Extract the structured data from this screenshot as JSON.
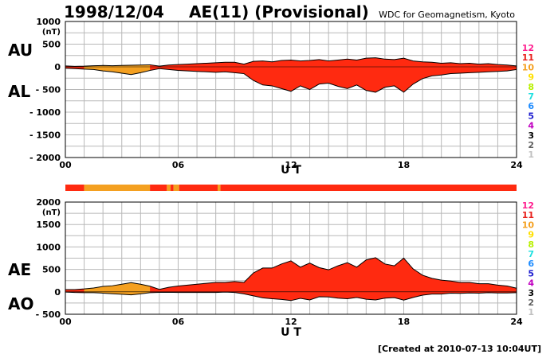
{
  "header": {
    "date": "1998/12/04",
    "title": "AE(11) (Provisional)",
    "source": "WDC for Geomagnetism, Kyoto"
  },
  "footer": {
    "created": "[Created at 2010-07-13 10:04UT]"
  },
  "colors": {
    "fill_main": "#ff2a10",
    "fill_low": "#f4a020",
    "outline": "#000000",
    "grid": "#b8b8b8"
  },
  "station_levels": [
    {
      "label": "12",
      "color": "#ff1f8f"
    },
    {
      "label": "11",
      "color": "#e8201c"
    },
    {
      "label": "10",
      "color": "#f4a020"
    },
    {
      "label": "9",
      "color": "#ffe000"
    },
    {
      "label": "8",
      "color": "#b8f000"
    },
    {
      "label": "7",
      "color": "#20e0e0"
    },
    {
      "label": "6",
      "color": "#1e8cff"
    },
    {
      "label": "5",
      "color": "#2020d0"
    },
    {
      "label": "4",
      "color": "#c000c0"
    },
    {
      "label": "3",
      "color": "#000000"
    },
    {
      "label": "2",
      "color": "#606060"
    },
    {
      "label": "1",
      "color": "#c0c0c0"
    }
  ],
  "chart_data": [
    {
      "type": "area",
      "panel": "AU/AL",
      "side_labels": {
        "upper": "AU",
        "lower": "AL"
      },
      "xlabel": "U T",
      "ylabel": "(nT)",
      "xlim": [
        0,
        24
      ],
      "ylim": [
        -2000,
        1000
      ],
      "xticks": [
        0,
        6,
        12,
        18,
        24
      ],
      "xtick_labels": [
        "00",
        "06",
        "12",
        "18",
        "24"
      ],
      "yticks": [
        1000,
        500,
        0,
        -500,
        -1000,
        -1500,
        -2000
      ],
      "ytick_labels": [
        "1000",
        "500",
        "0",
        "- 500",
        "- 1000",
        "- 1500",
        "- 2000"
      ],
      "grid": true,
      "series": [
        {
          "key": "AU",
          "x": [
            0,
            0.5,
            1,
            1.5,
            2,
            2.5,
            3,
            3.5,
            4,
            4.5,
            5,
            5.5,
            6,
            6.5,
            7,
            7.5,
            8,
            8.5,
            9,
            9.5,
            10,
            10.5,
            11,
            11.5,
            12,
            12.5,
            13,
            13.5,
            14,
            14.5,
            15,
            15.5,
            16,
            16.5,
            17,
            17.5,
            18,
            18.5,
            19,
            19.5,
            20,
            20.5,
            21,
            21.5,
            22,
            22.5,
            23,
            23.5,
            24
          ],
          "values": [
            20,
            10,
            15,
            25,
            30,
            25,
            30,
            35,
            40,
            45,
            15,
            40,
            50,
            60,
            70,
            80,
            90,
            100,
            100,
            60,
            120,
            130,
            110,
            140,
            150,
            130,
            140,
            160,
            130,
            150,
            170,
            150,
            190,
            200,
            170,
            160,
            190,
            130,
            110,
            100,
            80,
            90,
            70,
            80,
            60,
            70,
            50,
            40,
            20
          ]
        },
        {
          "key": "AL",
          "x": [
            0,
            0.5,
            1,
            1.5,
            2,
            2.5,
            3,
            3.5,
            4,
            4.5,
            5,
            5.5,
            6,
            6.5,
            7,
            7.5,
            8,
            8.5,
            9,
            9.5,
            10,
            10.5,
            11,
            11.5,
            12,
            12.5,
            13,
            13.5,
            14,
            14.5,
            15,
            15.5,
            16,
            16.5,
            17,
            17.5,
            18,
            18.5,
            19,
            19.5,
            20,
            20.5,
            21,
            21.5,
            22,
            22.5,
            23,
            23.5,
            24
          ],
          "values": [
            -30,
            -40,
            -50,
            -60,
            -90,
            -110,
            -140,
            -170,
            -130,
            -80,
            -40,
            -60,
            -80,
            -90,
            -100,
            -110,
            -120,
            -110,
            -130,
            -150,
            -300,
            -400,
            -420,
            -480,
            -540,
            -420,
            -500,
            -380,
            -360,
            -430,
            -480,
            -400,
            -520,
            -560,
            -450,
            -420,
            -560,
            -380,
            -260,
            -200,
            -180,
            -150,
            -140,
            -130,
            -120,
            -110,
            -100,
            -90,
            -60
          ]
        }
      ]
    },
    {
      "type": "area",
      "panel": "AE/AO",
      "side_labels": {
        "upper": "AE",
        "lower": "AO"
      },
      "xlabel": "U T",
      "ylabel": "(nT)",
      "xlim": [
        0,
        24
      ],
      "ylim": [
        -500,
        2000
      ],
      "xticks": [
        0,
        6,
        12,
        18,
        24
      ],
      "xtick_labels": [
        "00",
        "06",
        "12",
        "18",
        "24"
      ],
      "yticks": [
        2000,
        1500,
        1000,
        500,
        0,
        -500
      ],
      "ytick_labels": [
        "2000",
        "1500",
        "1000",
        "500",
        "0",
        "- 500"
      ],
      "grid": true,
      "series": [
        {
          "key": "AE",
          "x": [
            0,
            0.5,
            1,
            1.5,
            2,
            2.5,
            3,
            3.5,
            4,
            4.5,
            5,
            5.5,
            6,
            6.5,
            7,
            7.5,
            8,
            8.5,
            9,
            9.5,
            10,
            10.5,
            11,
            11.5,
            12,
            12.5,
            13,
            13.5,
            14,
            14.5,
            15,
            15.5,
            16,
            16.5,
            17,
            17.5,
            18,
            18.5,
            19,
            19.5,
            20,
            20.5,
            21,
            21.5,
            22,
            22.5,
            23,
            23.5,
            24
          ],
          "values": [
            50,
            50,
            65,
            85,
            120,
            135,
            170,
            205,
            170,
            125,
            55,
            100,
            130,
            150,
            170,
            190,
            210,
            210,
            230,
            210,
            420,
            530,
            530,
            620,
            690,
            550,
            640,
            540,
            490,
            580,
            650,
            550,
            710,
            760,
            620,
            580,
            750,
            510,
            370,
            300,
            260,
            240,
            210,
            210,
            180,
            180,
            150,
            130,
            80
          ]
        },
        {
          "key": "AO",
          "x": [
            0,
            0.5,
            1,
            1.5,
            2,
            2.5,
            3,
            3.5,
            4,
            4.5,
            5,
            5.5,
            6,
            6.5,
            7,
            7.5,
            8,
            8.5,
            9,
            9.5,
            10,
            10.5,
            11,
            11.5,
            12,
            12.5,
            13,
            13.5,
            14,
            14.5,
            15,
            15.5,
            16,
            16.5,
            17,
            17.5,
            18,
            18.5,
            19,
            19.5,
            20,
            20.5,
            21,
            21.5,
            22,
            22.5,
            23,
            23.5,
            24
          ],
          "values": [
            -5,
            -15,
            -18,
            -18,
            -30,
            -43,
            -55,
            -68,
            -45,
            -18,
            -13,
            -10,
            -15,
            -15,
            -15,
            -15,
            -15,
            -5,
            -15,
            -45,
            -90,
            -135,
            -155,
            -170,
            -195,
            -145,
            -180,
            -110,
            -115,
            -140,
            -155,
            -125,
            -165,
            -180,
            -140,
            -130,
            -185,
            -125,
            -75,
            -50,
            -50,
            -30,
            -35,
            -25,
            -30,
            -20,
            -25,
            -25,
            -20
          ]
        }
      ]
    }
  ],
  "station_strip": {
    "segments": [
      {
        "from": 0,
        "to": 1,
        "level": "11"
      },
      {
        "from": 1,
        "to": 4.5,
        "level": "10"
      },
      {
        "from": 4.5,
        "to": 5.4,
        "level": "11"
      },
      {
        "from": 5.4,
        "to": 5.6,
        "level": "10"
      },
      {
        "from": 5.6,
        "to": 5.75,
        "level": "11"
      },
      {
        "from": 5.75,
        "to": 6.05,
        "level": "10"
      },
      {
        "from": 6.05,
        "to": 8.1,
        "level": "11"
      },
      {
        "from": 8.1,
        "to": 8.25,
        "level": "10"
      },
      {
        "from": 8.25,
        "to": 24,
        "level": "11"
      }
    ]
  }
}
